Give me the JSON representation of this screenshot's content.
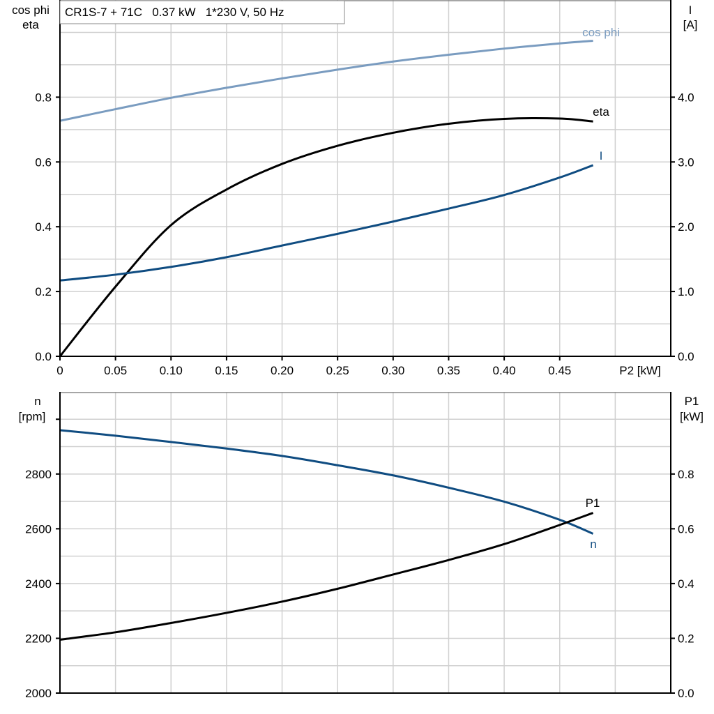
{
  "chart_data": [
    {
      "type": "line",
      "title": "CR1S-7 + 71C   0.37 kW   1*230 V, 50 Hz",
      "xlabel": "P2 [kW]",
      "ylabel_left": [
        "cos phi",
        "eta"
      ],
      "ylabel_right": [
        "I",
        "[A]"
      ],
      "xlim": [
        0,
        0.55
      ],
      "ylim_left": [
        0,
        1.1
      ],
      "ylim_right": [
        0,
        5.5
      ],
      "x_ticks": [
        "0",
        "0.05",
        "0.10",
        "0.15",
        "0.20",
        "0.25",
        "0.30",
        "0.35",
        "0.40",
        "0.45"
      ],
      "y_ticks_left": [
        "0.0",
        "0.2",
        "0.4",
        "0.6",
        "0.8"
      ],
      "y_ticks_right": [
        "0.0",
        "1.0",
        "2.0",
        "3.0",
        "4.0"
      ],
      "grid": true,
      "series": [
        {
          "name": "cos phi",
          "axis": "left",
          "color": "#7a9cc0",
          "x": [
            0,
            0.05,
            0.1,
            0.15,
            0.2,
            0.25,
            0.3,
            0.35,
            0.4,
            0.45,
            0.48
          ],
          "y": [
            0.727,
            0.763,
            0.798,
            0.829,
            0.858,
            0.885,
            0.91,
            0.931,
            0.95,
            0.966,
            0.974
          ]
        },
        {
          "name": "eta",
          "axis": "left",
          "color": "#000000",
          "x": [
            0,
            0.05,
            0.1,
            0.15,
            0.2,
            0.25,
            0.3,
            0.35,
            0.4,
            0.45,
            0.48
          ],
          "y": [
            0.0,
            0.215,
            0.405,
            0.515,
            0.594,
            0.65,
            0.69,
            0.718,
            0.733,
            0.734,
            0.725
          ]
        },
        {
          "name": "I",
          "axis": "right",
          "color": "#0f4c81",
          "x": [
            0,
            0.05,
            0.1,
            0.15,
            0.2,
            0.25,
            0.3,
            0.35,
            0.4,
            0.45,
            0.48
          ],
          "y": [
            1.17,
            1.26,
            1.38,
            1.53,
            1.71,
            1.89,
            2.08,
            2.28,
            2.49,
            2.76,
            2.95
          ]
        }
      ]
    },
    {
      "type": "line",
      "ylabel_left": [
        "n",
        "[rpm]"
      ],
      "ylabel_right": [
        "P1",
        "[kW]"
      ],
      "xlim": [
        0,
        0.55
      ],
      "ylim_left": [
        2000,
        3100
      ],
      "ylim_right": [
        0,
        1.1
      ],
      "y_ticks_left": [
        "2000",
        "2200",
        "2400",
        "2600",
        "2800"
      ],
      "y_ticks_right": [
        "0.0",
        "0.2",
        "0.4",
        "0.6",
        "0.8"
      ],
      "grid": true,
      "series": [
        {
          "name": "n",
          "axis": "left",
          "color": "#0f4c81",
          "x": [
            0,
            0.05,
            0.1,
            0.15,
            0.2,
            0.25,
            0.3,
            0.35,
            0.4,
            0.45,
            0.48
          ],
          "y": [
            2960,
            2940,
            2917,
            2893,
            2866,
            2832,
            2795,
            2750,
            2699,
            2633,
            2582
          ]
        },
        {
          "name": "P1",
          "axis": "right",
          "color": "#000000",
          "x": [
            0,
            0.05,
            0.1,
            0.15,
            0.2,
            0.25,
            0.3,
            0.35,
            0.4,
            0.45,
            0.48
          ],
          "y": [
            0.195,
            0.222,
            0.256,
            0.293,
            0.334,
            0.381,
            0.433,
            0.486,
            0.544,
            0.614,
            0.658
          ]
        }
      ]
    }
  ]
}
